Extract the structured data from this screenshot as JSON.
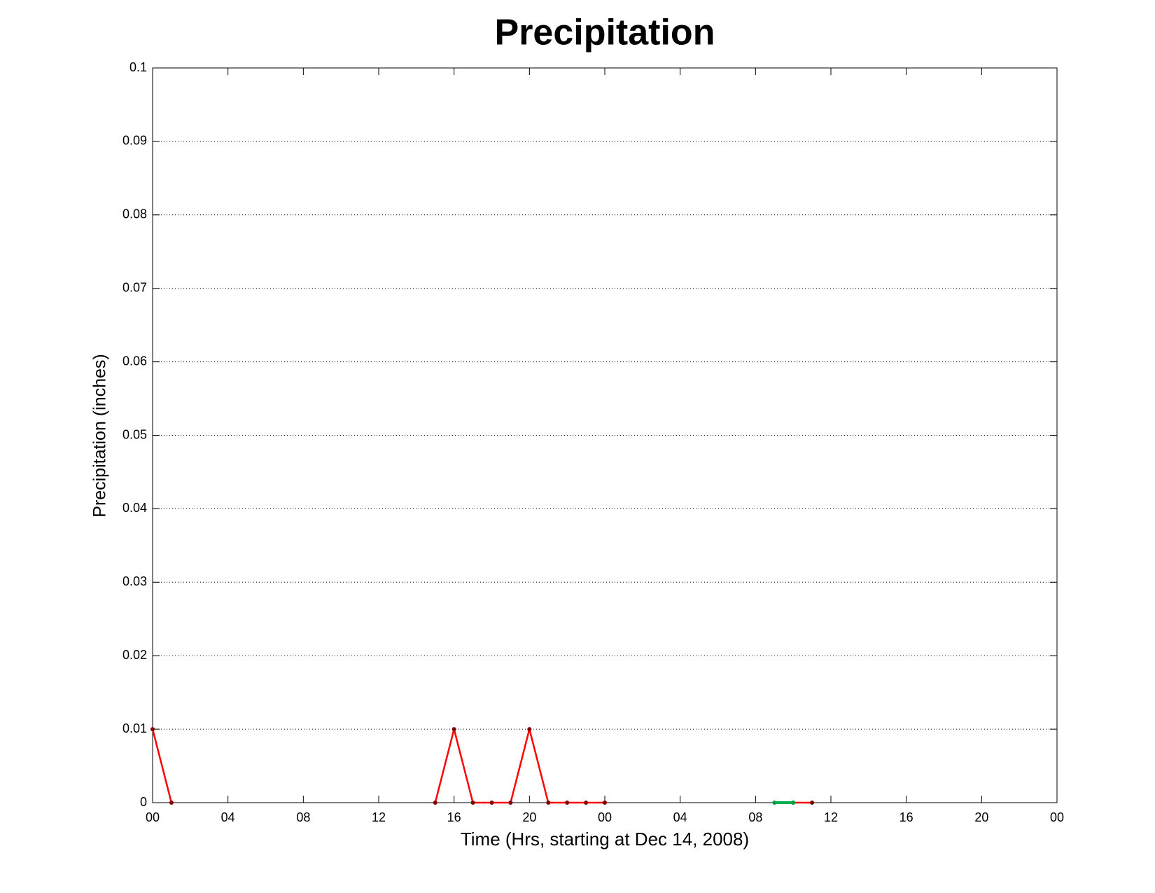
{
  "chart_data": {
    "type": "line",
    "title": "Precipitation",
    "x_label": "Time (Hrs, starting at Dec 14, 2008)",
    "y_label": "Precipitation (inches)",
    "x": [
      0,
      1,
      2,
      3,
      4,
      5,
      6,
      7,
      8,
      9,
      10,
      11,
      12,
      13,
      14,
      15,
      16,
      17,
      18,
      19,
      20,
      21,
      22,
      23,
      24,
      25,
      26,
      27,
      28,
      29,
      30,
      31,
      32,
      33,
      34,
      35
    ],
    "series": [
      {
        "color": "#ff0000",
        "marker_color": "#800000",
        "values": [
          0.01,
          0,
          null,
          null,
          null,
          null,
          null,
          null,
          null,
          null,
          null,
          null,
          null,
          null,
          null,
          0,
          0.01,
          0,
          0,
          0,
          0.01,
          0,
          0,
          0,
          0,
          null,
          null,
          null,
          null,
          null,
          null,
          null,
          null,
          null,
          0,
          0
        ]
      },
      {
        "color": "#00b050",
        "marker_color": "#00a040",
        "values": [
          null,
          null,
          null,
          null,
          null,
          null,
          null,
          null,
          null,
          null,
          null,
          null,
          null,
          null,
          null,
          null,
          null,
          null,
          null,
          null,
          null,
          null,
          null,
          null,
          null,
          null,
          null,
          null,
          null,
          null,
          null,
          null,
          null,
          0,
          0,
          null
        ]
      }
    ],
    "xlim": [
      0,
      48
    ],
    "xticks": [
      {
        "value": 0,
        "label": "00"
      },
      {
        "value": 4,
        "label": "04"
      },
      {
        "value": 8,
        "label": "08"
      },
      12,
      16,
      20,
      {
        "value": 24,
        "label": "00"
      },
      {
        "value": 28,
        "label": "04"
      },
      {
        "value": 32,
        "label": "08"
      },
      {
        "value": 36,
        "label": "12"
      },
      {
        "value": 40,
        "label": "16"
      },
      {
        "value": 44,
        "label": "20"
      },
      {
        "value": 48,
        "label": "00"
      }
    ],
    "ylim": [
      0,
      0.1
    ],
    "yticks": [
      0,
      0.01,
      0.02,
      0.03,
      0.04,
      0.05,
      0.06,
      0.07,
      0.08,
      0.09,
      0.1
    ],
    "ygrid": true
  }
}
